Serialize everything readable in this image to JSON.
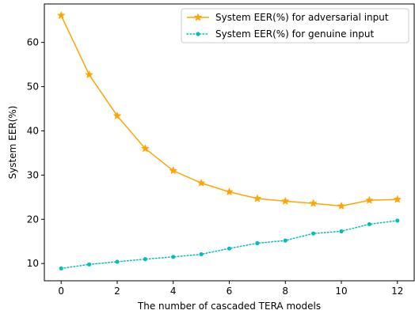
{
  "chart_data": {
    "type": "line",
    "xlabel": "The number of cascaded TERA models",
    "ylabel": "System EER(%)",
    "x": [
      0,
      1,
      2,
      3,
      4,
      5,
      6,
      7,
      8,
      9,
      10,
      11,
      12
    ],
    "xlim": [
      -0.6,
      12.6
    ],
    "ylim": [
      6.1,
      68.7
    ],
    "xticks": [
      0,
      2,
      4,
      6,
      8,
      10,
      12
    ],
    "yticks": [
      10,
      20,
      30,
      40,
      50,
      60
    ],
    "grid": false,
    "legend_position": "top-right",
    "series": [
      {
        "name": "System EER(%) for adversarial input",
        "values": [
          66.1,
          52.7,
          43.4,
          36.0,
          31.0,
          28.2,
          26.2,
          24.7,
          24.1,
          23.6,
          23.0,
          24.3,
          24.5
        ],
        "color": "#ffa500",
        "line_style": "solid",
        "marker": "star"
      },
      {
        "name": "System EER(%) for genuine input",
        "values": [
          8.9,
          9.8,
          10.4,
          11.0,
          11.5,
          12.1,
          13.4,
          14.6,
          15.2,
          16.8,
          17.3,
          18.9,
          19.7
        ],
        "color": "#00bfbf",
        "line_style": "dotted",
        "marker": "circle"
      }
    ]
  }
}
